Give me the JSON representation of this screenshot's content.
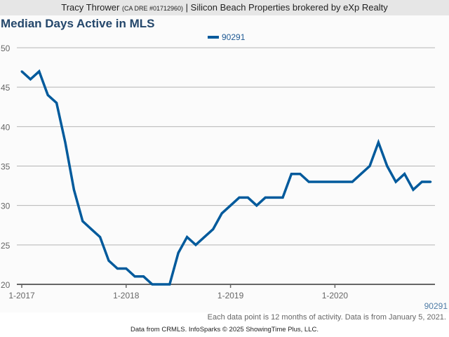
{
  "header": {
    "agent": "Tracy Thrower",
    "license": "(CA DRE #01712960)",
    "separator": "|",
    "brokerage": "Silicon Beach Properties brokered by eXp Realty"
  },
  "colors": {
    "series": "#005a9c",
    "title": "#24476b"
  },
  "chart_data": {
    "type": "line",
    "title": "Median Days Active in MLS",
    "xlabel": "",
    "ylabel": "",
    "ylim": [
      20,
      50
    ],
    "yticks": [
      "20",
      "25",
      "30",
      "35",
      "40",
      "45",
      "50"
    ],
    "xticks": [
      "1-2017",
      "1-2018",
      "1-2019",
      "1-2020"
    ],
    "grid": true,
    "legend_position": "top-center",
    "series": [
      {
        "name": "90291",
        "start": "1-2017",
        "frequency": "monthly",
        "values": [
          47,
          46,
          47,
          44,
          43,
          38,
          32,
          28,
          27,
          26,
          23,
          22,
          22,
          21,
          21,
          20,
          20,
          20,
          24,
          26,
          25,
          26,
          27,
          29,
          30,
          31,
          31,
          30,
          31,
          31,
          31,
          34,
          34,
          33,
          33,
          33,
          33,
          33,
          33,
          34,
          35,
          38,
          35,
          33,
          34,
          32,
          33,
          33
        ]
      }
    ],
    "x_axis_series_label": "90291"
  },
  "footer": {
    "note": "Each data point is 12 months of activity. Data is from January 5, 2021.",
    "credit": "Data from CRMLS. InfoSparks © 2025 ShowingTime Plus, LLC."
  }
}
